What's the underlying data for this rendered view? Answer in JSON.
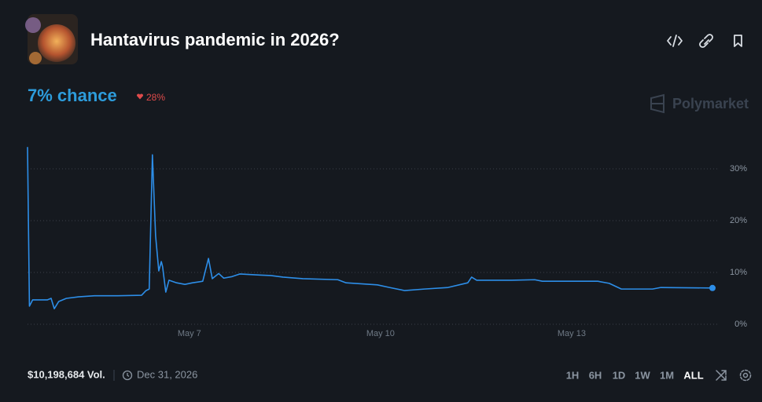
{
  "header": {
    "title": "Hantavirus pandemic in 2026?",
    "chance": "7% chance",
    "change": "28%",
    "brand": "Polymarket"
  },
  "chart_data": {
    "type": "line",
    "x": [
      4.46,
      4.49,
      4.54,
      4.77,
      4.83,
      4.88,
      4.95,
      5.07,
      5.26,
      5.51,
      5.88,
      6.25,
      6.32,
      6.37,
      6.42,
      6.47,
      6.52,
      6.56,
      6.58,
      6.63,
      6.68,
      6.8,
      6.93,
      7.05,
      7.21,
      7.3,
      7.36,
      7.46,
      7.54,
      7.67,
      7.79,
      8.1,
      8.28,
      8.47,
      8.78,
      9.33,
      9.46,
      9.95,
      10.14,
      10.38,
      10.69,
      11.06,
      11.37,
      11.43,
      11.51,
      12.05,
      12.42,
      12.54,
      13.41,
      13.59,
      13.78,
      14.27,
      14.4,
      15.21
    ],
    "series": [
      {
        "color": "#2d8ee8",
        "values": [
          34.2,
          3.5,
          4.7,
          4.7,
          5.0,
          3.0,
          4.4,
          5.0,
          5.3,
          5.5,
          5.5,
          5.6,
          6.5,
          6.8,
          32.7,
          17.1,
          10.3,
          12.1,
          11.1,
          6.2,
          8.5,
          8.0,
          7.7,
          8.0,
          8.3,
          12.7,
          8.8,
          9.8,
          8.9,
          9.2,
          9.7,
          9.5,
          9.4,
          9.1,
          8.8,
          8.6,
          8.0,
          7.6,
          7.1,
          6.5,
          6.8,
          7.1,
          8.0,
          9.1,
          8.5,
          8.5,
          8.6,
          8.3,
          8.3,
          7.9,
          6.8,
          6.8,
          7.1,
          7.0
        ]
      }
    ],
    "xlim": [
      4.46,
      15.21
    ],
    "xticks": [
      {
        "value": 7,
        "label": "May 7"
      },
      {
        "value": 10,
        "label": "May 10"
      },
      {
        "value": 13,
        "label": "May 13"
      }
    ],
    "ylim": [
      0,
      36
    ],
    "yticks": [
      {
        "value": 0,
        "label": "0%"
      },
      {
        "value": 10,
        "label": "10%"
      },
      {
        "value": 20,
        "label": "20%"
      },
      {
        "value": 30,
        "label": "30%"
      }
    ],
    "grid": true
  },
  "footer": {
    "volume": "$10,198,684 Vol.",
    "end_date": "Dec 31, 2026",
    "ranges": [
      "1H",
      "6H",
      "1D",
      "1W",
      "1M",
      "ALL"
    ],
    "active_range": "ALL"
  }
}
